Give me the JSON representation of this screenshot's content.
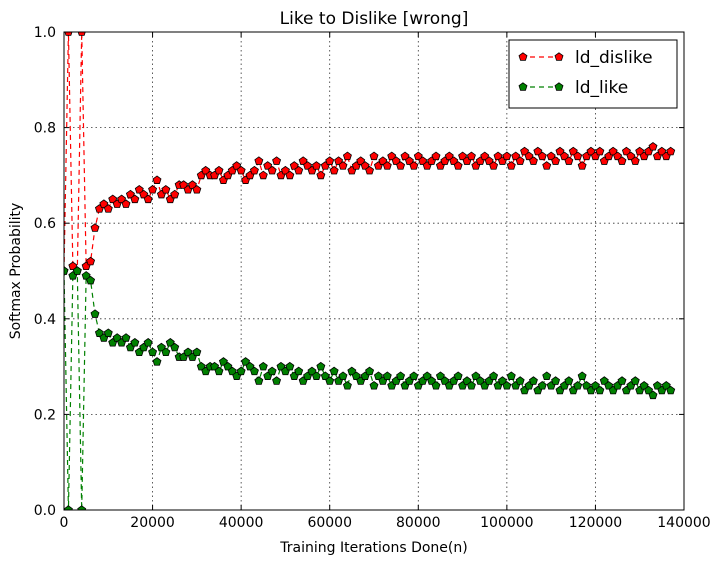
{
  "chart_data": {
    "type": "line",
    "title": "Like to Dislike [wrong]",
    "xlabel": "Training Iterations Done(n)",
    "ylabel": "Softmax Probability",
    "xlim": [
      0,
      140000
    ],
    "ylim": [
      0.0,
      1.0
    ],
    "xticks": [
      "0",
      "20000",
      "40000",
      "60000",
      "80000",
      "100000",
      "120000",
      "140000"
    ],
    "yticks": [
      "0.0",
      "0.2",
      "0.4",
      "0.6",
      "0.8",
      "1.0"
    ],
    "grid": true,
    "legend_position": "top-right",
    "series": [
      {
        "name": "ld_dislike",
        "color": "#ff0000",
        "marker": "pentagon",
        "line_style": "dashed",
        "x": [
          0,
          1000,
          2000,
          3000,
          4000,
          5000,
          6000,
          7000,
          8000,
          9000,
          10000,
          11000,
          12000,
          13000,
          14000,
          15000,
          16000,
          17000,
          18000,
          19000,
          20000,
          21000,
          22000,
          23000,
          24000,
          25000,
          26000,
          27000,
          28000,
          29000,
          30000,
          31000,
          32000,
          33000,
          34000,
          35000,
          36000,
          37000,
          38000,
          39000,
          40000,
          41000,
          42000,
          43000,
          44000,
          45000,
          46000,
          47000,
          48000,
          49000,
          50000,
          51000,
          52000,
          53000,
          54000,
          55000,
          56000,
          57000,
          58000,
          59000,
          60000,
          61000,
          62000,
          63000,
          64000,
          65000,
          66000,
          67000,
          68000,
          69000,
          70000,
          71000,
          72000,
          73000,
          74000,
          75000,
          76000,
          77000,
          78000,
          79000,
          80000,
          81000,
          82000,
          83000,
          84000,
          85000,
          86000,
          87000,
          88000,
          89000,
          90000,
          91000,
          92000,
          93000,
          94000,
          95000,
          96000,
          97000,
          98000,
          99000,
          100000,
          101000,
          102000,
          103000,
          104000,
          105000,
          106000,
          107000,
          108000,
          109000,
          110000,
          111000,
          112000,
          113000,
          114000,
          115000,
          116000,
          117000,
          118000,
          119000,
          120000,
          121000,
          122000,
          123000,
          124000,
          125000,
          126000,
          127000,
          128000,
          129000,
          130000,
          131000,
          132000,
          133000,
          134000,
          135000,
          136000,
          137000
        ],
        "y": [
          0.5,
          1.0,
          0.51,
          0.5,
          1.0,
          0.51,
          0.52,
          0.59,
          0.63,
          0.64,
          0.63,
          0.65,
          0.64,
          0.65,
          0.64,
          0.66,
          0.65,
          0.67,
          0.66,
          0.65,
          0.67,
          0.69,
          0.66,
          0.67,
          0.65,
          0.66,
          0.68,
          0.68,
          0.67,
          0.68,
          0.67,
          0.7,
          0.71,
          0.7,
          0.7,
          0.71,
          0.69,
          0.7,
          0.71,
          0.72,
          0.71,
          0.69,
          0.7,
          0.71,
          0.73,
          0.7,
          0.72,
          0.71,
          0.73,
          0.7,
          0.71,
          0.7,
          0.72,
          0.71,
          0.73,
          0.72,
          0.71,
          0.72,
          0.7,
          0.72,
          0.73,
          0.71,
          0.73,
          0.72,
          0.74,
          0.71,
          0.72,
          0.73,
          0.72,
          0.71,
          0.74,
          0.72,
          0.73,
          0.72,
          0.74,
          0.73,
          0.72,
          0.74,
          0.73,
          0.72,
          0.74,
          0.73,
          0.72,
          0.73,
          0.74,
          0.72,
          0.73,
          0.74,
          0.73,
          0.72,
          0.74,
          0.73,
          0.74,
          0.72,
          0.73,
          0.74,
          0.73,
          0.72,
          0.74,
          0.73,
          0.74,
          0.72,
          0.74,
          0.73,
          0.75,
          0.74,
          0.73,
          0.75,
          0.74,
          0.72,
          0.74,
          0.73,
          0.75,
          0.74,
          0.73,
          0.75,
          0.74,
          0.72,
          0.74,
          0.75,
          0.74,
          0.75,
          0.73,
          0.74,
          0.75,
          0.74,
          0.73,
          0.75,
          0.74,
          0.73,
          0.75,
          0.74,
          0.75,
          0.76,
          0.74,
          0.75,
          0.74,
          0.75
        ]
      },
      {
        "name": "ld_like",
        "color": "#008000",
        "marker": "pentagon",
        "line_style": "dashed",
        "x": [
          0,
          1000,
          2000,
          3000,
          4000,
          5000,
          6000,
          7000,
          8000,
          9000,
          10000,
          11000,
          12000,
          13000,
          14000,
          15000,
          16000,
          17000,
          18000,
          19000,
          20000,
          21000,
          22000,
          23000,
          24000,
          25000,
          26000,
          27000,
          28000,
          29000,
          30000,
          31000,
          32000,
          33000,
          34000,
          35000,
          36000,
          37000,
          38000,
          39000,
          40000,
          41000,
          42000,
          43000,
          44000,
          45000,
          46000,
          47000,
          48000,
          49000,
          50000,
          51000,
          52000,
          53000,
          54000,
          55000,
          56000,
          57000,
          58000,
          59000,
          60000,
          61000,
          62000,
          63000,
          64000,
          65000,
          66000,
          67000,
          68000,
          69000,
          70000,
          71000,
          72000,
          73000,
          74000,
          75000,
          76000,
          77000,
          78000,
          79000,
          80000,
          81000,
          82000,
          83000,
          84000,
          85000,
          86000,
          87000,
          88000,
          89000,
          90000,
          91000,
          92000,
          93000,
          94000,
          95000,
          96000,
          97000,
          98000,
          99000,
          100000,
          101000,
          102000,
          103000,
          104000,
          105000,
          106000,
          107000,
          108000,
          109000,
          110000,
          111000,
          112000,
          113000,
          114000,
          115000,
          116000,
          117000,
          118000,
          119000,
          120000,
          121000,
          122000,
          123000,
          124000,
          125000,
          126000,
          127000,
          128000,
          129000,
          130000,
          131000,
          132000,
          133000,
          134000,
          135000,
          136000,
          137000
        ],
        "y": [
          0.5,
          0.0,
          0.49,
          0.5,
          0.0,
          0.49,
          0.48,
          0.41,
          0.37,
          0.36,
          0.37,
          0.35,
          0.36,
          0.35,
          0.36,
          0.34,
          0.35,
          0.33,
          0.34,
          0.35,
          0.33,
          0.31,
          0.34,
          0.33,
          0.35,
          0.34,
          0.32,
          0.32,
          0.33,
          0.32,
          0.33,
          0.3,
          0.29,
          0.3,
          0.3,
          0.29,
          0.31,
          0.3,
          0.29,
          0.28,
          0.29,
          0.31,
          0.3,
          0.29,
          0.27,
          0.3,
          0.28,
          0.29,
          0.27,
          0.3,
          0.29,
          0.3,
          0.28,
          0.29,
          0.27,
          0.28,
          0.29,
          0.28,
          0.3,
          0.28,
          0.27,
          0.29,
          0.27,
          0.28,
          0.26,
          0.29,
          0.28,
          0.27,
          0.28,
          0.29,
          0.26,
          0.28,
          0.27,
          0.28,
          0.26,
          0.27,
          0.28,
          0.26,
          0.27,
          0.28,
          0.26,
          0.27,
          0.28,
          0.27,
          0.26,
          0.28,
          0.27,
          0.26,
          0.27,
          0.28,
          0.26,
          0.27,
          0.26,
          0.28,
          0.27,
          0.26,
          0.27,
          0.28,
          0.26,
          0.27,
          0.26,
          0.28,
          0.26,
          0.27,
          0.25,
          0.26,
          0.27,
          0.25,
          0.26,
          0.28,
          0.26,
          0.27,
          0.25,
          0.26,
          0.27,
          0.25,
          0.26,
          0.28,
          0.26,
          0.25,
          0.26,
          0.25,
          0.27,
          0.26,
          0.25,
          0.26,
          0.27,
          0.25,
          0.26,
          0.27,
          0.25,
          0.26,
          0.25,
          0.24,
          0.26,
          0.25,
          0.26,
          0.25
        ]
      }
    ]
  }
}
